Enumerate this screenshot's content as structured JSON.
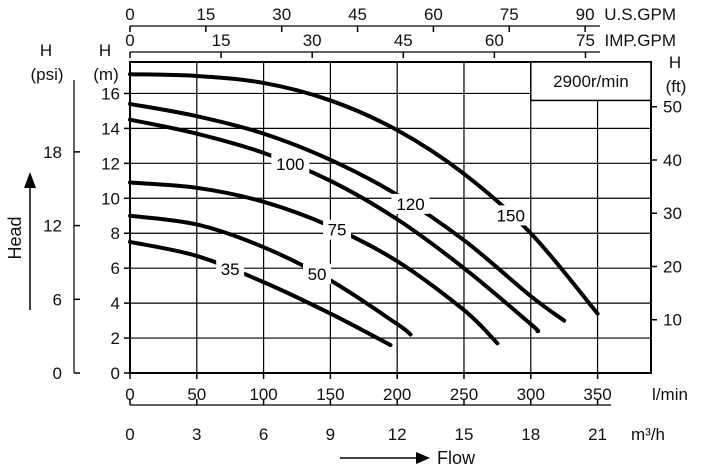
{
  "chart_data": {
    "type": "line",
    "speed_label": "2900r/min",
    "x_axis": {
      "flow_lmin": {
        "unit": "l/min",
        "ticks": [
          "0",
          "50",
          "100",
          "150",
          "200",
          "250",
          "300",
          "350"
        ],
        "range": [
          0,
          390
        ]
      },
      "flow_m3h": {
        "unit": "m³/h",
        "ticks": [
          "0",
          "3",
          "6",
          "9",
          "12",
          "15",
          "18",
          "21"
        ]
      },
      "flow_usgpm": {
        "unit": "U.S.GPM",
        "ticks": [
          "0",
          "15",
          "30",
          "45",
          "60",
          "75",
          "90"
        ]
      },
      "flow_impgpm": {
        "unit": "IMP.GPM",
        "ticks": [
          "0",
          "15",
          "30",
          "45",
          "60",
          "75"
        ]
      },
      "title": "Flow"
    },
    "y_axis": {
      "head_m": {
        "unit_top": "H",
        "unit_bottom": "(m)",
        "ticks": [
          "0",
          "2",
          "4",
          "6",
          "8",
          "10",
          "12",
          "14",
          "16"
        ],
        "range": [
          0,
          17.8
        ]
      },
      "head_psi": {
        "unit_top": "H",
        "unit_bottom": "(psi)",
        "ticks": [
          "0",
          "6",
          "12",
          "18"
        ]
      },
      "head_ft": {
        "unit_top": "H",
        "unit_bottom": "(ft)",
        "ticks": [
          "10",
          "20",
          "30",
          "40",
          "50"
        ]
      },
      "title": "Head"
    },
    "grid": true,
    "series": [
      {
        "name": "35",
        "x": [
          0,
          50,
          100,
          150,
          195
        ],
        "y": [
          7.5,
          6.7,
          5.2,
          3.4,
          1.6
        ]
      },
      {
        "name": "50",
        "x": [
          0,
          50,
          100,
          150,
          200,
          210
        ],
        "y": [
          9.0,
          8.5,
          7.2,
          5.3,
          2.8,
          2.2
        ]
      },
      {
        "name": "75",
        "x": [
          0,
          50,
          100,
          150,
          200,
          250,
          275
        ],
        "y": [
          10.9,
          10.6,
          9.8,
          8.4,
          6.4,
          3.6,
          1.7
        ]
      },
      {
        "name": "100",
        "x": [
          0,
          50,
          100,
          150,
          200,
          250,
          300,
          305
        ],
        "y": [
          14.5,
          13.7,
          12.6,
          11.0,
          8.8,
          6.0,
          2.8,
          2.4
        ]
      },
      {
        "name": "120",
        "x": [
          0,
          50,
          100,
          150,
          200,
          250,
          300,
          325
        ],
        "y": [
          15.4,
          14.7,
          13.7,
          12.2,
          10.2,
          7.6,
          4.4,
          3.0
        ]
      },
      {
        "name": "150",
        "x": [
          0,
          50,
          100,
          150,
          200,
          250,
          300,
          350
        ],
        "y": [
          17.1,
          17.0,
          16.6,
          15.6,
          13.9,
          11.4,
          8.0,
          3.4
        ]
      }
    ]
  }
}
